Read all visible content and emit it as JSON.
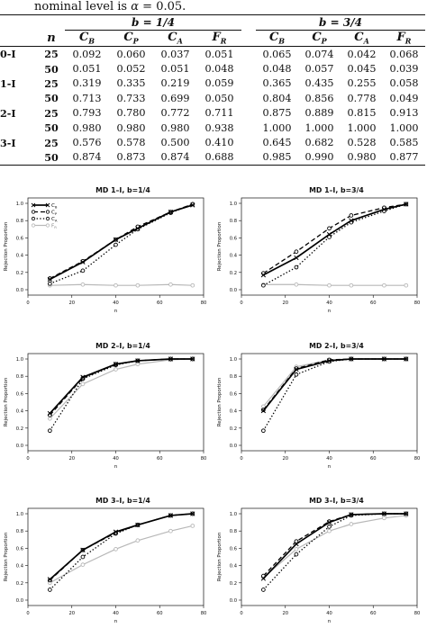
{
  "caption": {
    "prefix": "nominal level is ",
    "alpha_symbol": "α",
    "rest": " = 0.05."
  },
  "table": {
    "group_headers": [
      "b = 1/4",
      "b = 3/4"
    ],
    "n_header": "n",
    "col_symbols": [
      {
        "main": "C",
        "sub": "B"
      },
      {
        "main": "C",
        "sub": "P"
      },
      {
        "main": "C",
        "sub": "A"
      },
      {
        "main": "F",
        "sub": "R"
      }
    ],
    "rows": [
      {
        "model": "0-I",
        "n": "25",
        "v1": [
          "0.092",
          "0.060",
          "0.037",
          "0.051"
        ],
        "v2": [
          "0.065",
          "0.074",
          "0.042",
          "0.068"
        ]
      },
      {
        "model": "",
        "n": "50",
        "v1": [
          "0.051",
          "0.052",
          "0.051",
          "0.048"
        ],
        "v2": [
          "0.048",
          "0.057",
          "0.045",
          "0.039"
        ]
      },
      {
        "model": "1-I",
        "n": "25",
        "v1": [
          "0.319",
          "0.335",
          "0.219",
          "0.059"
        ],
        "v2": [
          "0.365",
          "0.435",
          "0.255",
          "0.058"
        ]
      },
      {
        "model": "",
        "n": "50",
        "v1": [
          "0.713",
          "0.733",
          "0.699",
          "0.050"
        ],
        "v2": [
          "0.804",
          "0.856",
          "0.778",
          "0.049"
        ]
      },
      {
        "model": "2-I",
        "n": "25",
        "v1": [
          "0.793",
          "0.780",
          "0.772",
          "0.711"
        ],
        "v2": [
          "0.875",
          "0.889",
          "0.815",
          "0.913"
        ]
      },
      {
        "model": "",
        "n": "50",
        "v1": [
          "0.980",
          "0.980",
          "0.980",
          "0.938"
        ],
        "v2": [
          "1.000",
          "1.000",
          "1.000",
          "1.000"
        ]
      },
      {
        "model": "3-I",
        "n": "25",
        "v1": [
          "0.576",
          "0.578",
          "0.500",
          "0.410"
        ],
        "v2": [
          "0.645",
          "0.682",
          "0.528",
          "0.585"
        ]
      },
      {
        "model": "",
        "n": "50",
        "v1": [
          "0.874",
          "0.873",
          "0.874",
          "0.688"
        ],
        "v2": [
          "0.985",
          "0.990",
          "0.980",
          "0.877"
        ]
      }
    ]
  },
  "chart_data": [
    {
      "type": "line",
      "title": "MD 1–I, b=1/4",
      "xlabel": "n",
      "ylabel": "Rejection Proportion",
      "xlim": [
        0,
        80
      ],
      "ylim": [
        0,
        1.0
      ],
      "x_ticks": [
        "0",
        "20",
        "40",
        "60",
        "80"
      ],
      "y_ticks": [
        "0.0",
        "0.2",
        "0.4",
        "0.6",
        "0.8",
        "1.0"
      ],
      "legend": [
        {
          "main": "C",
          "sub": "B"
        },
        {
          "main": "C",
          "sub": "P"
        },
        {
          "main": "C",
          "sub": "A"
        },
        {
          "main": "F",
          "sub": "R"
        }
      ],
      "x": [
        10,
        25,
        40,
        50,
        65,
        75
      ],
      "series": [
        {
          "style": "CB",
          "values": [
            0.12,
            0.32,
            0.58,
            0.71,
            0.9,
            0.98
          ]
        },
        {
          "style": "CP",
          "values": [
            0.13,
            0.33,
            0.58,
            0.73,
            0.9,
            0.99
          ]
        },
        {
          "style": "CA",
          "values": [
            0.07,
            0.22,
            0.52,
            0.7,
            0.89,
            0.99
          ]
        },
        {
          "style": "FR",
          "values": [
            0.05,
            0.06,
            0.05,
            0.05,
            0.06,
            0.05
          ]
        }
      ]
    },
    {
      "type": "line",
      "title": "MD 1–I, b=3/4",
      "xlabel": "n",
      "ylabel": "Rejection Proportion",
      "xlim": [
        0,
        80
      ],
      "ylim": [
        0,
        1.0
      ],
      "x_ticks": [
        "0",
        "20",
        "40",
        "60",
        "80"
      ],
      "y_ticks": [
        "0.0",
        "0.2",
        "0.4",
        "0.6",
        "0.8",
        "1.0"
      ],
      "x": [
        10,
        25,
        40,
        50,
        65,
        75
      ],
      "series": [
        {
          "style": "CB",
          "values": [
            0.17,
            0.37,
            0.64,
            0.8,
            0.93,
            0.99
          ]
        },
        {
          "style": "CP",
          "values": [
            0.19,
            0.44,
            0.71,
            0.86,
            0.95,
            0.99
          ]
        },
        {
          "style": "CA",
          "values": [
            0.05,
            0.26,
            0.61,
            0.78,
            0.91,
            0.99
          ]
        },
        {
          "style": "FR",
          "values": [
            0.06,
            0.06,
            0.05,
            0.05,
            0.05,
            0.05
          ]
        }
      ]
    },
    {
      "type": "line",
      "title": "MD 2–I, b=1/4",
      "xlabel": "n",
      "ylabel": "Rejection Proportion",
      "xlim": [
        0,
        80
      ],
      "ylim": [
        0,
        1.0
      ],
      "x_ticks": [
        "0",
        "20",
        "40",
        "60",
        "80"
      ],
      "y_ticks": [
        "0.0",
        "0.2",
        "0.4",
        "0.6",
        "0.8",
        "1.0"
      ],
      "x": [
        10,
        25,
        40,
        50,
        65,
        75
      ],
      "series": [
        {
          "style": "CB",
          "values": [
            0.37,
            0.79,
            0.94,
            0.98,
            1.0,
            1.0
          ]
        },
        {
          "style": "CP",
          "values": [
            0.35,
            0.78,
            0.94,
            0.98,
            1.0,
            1.0
          ]
        },
        {
          "style": "CA",
          "values": [
            0.17,
            0.77,
            0.93,
            0.98,
            1.0,
            1.0
          ]
        },
        {
          "style": "FR",
          "values": [
            0.31,
            0.71,
            0.88,
            0.94,
            0.99,
            1.0
          ]
        }
      ]
    },
    {
      "type": "line",
      "title": "MD 2–I, b=3/4",
      "xlabel": "n",
      "ylabel": "Rejection Proportion",
      "xlim": [
        0,
        80
      ],
      "ylim": [
        0,
        1.0
      ],
      "x_ticks": [
        "0",
        "20",
        "40",
        "60",
        "80"
      ],
      "y_ticks": [
        "0.0",
        "0.2",
        "0.4",
        "0.6",
        "0.8",
        "1.0"
      ],
      "x": [
        10,
        25,
        40,
        50,
        65,
        75
      ],
      "series": [
        {
          "style": "CB",
          "values": [
            0.4,
            0.88,
            0.98,
            1.0,
            1.0,
            1.0
          ]
        },
        {
          "style": "CP",
          "values": [
            0.41,
            0.89,
            0.99,
            1.0,
            1.0,
            1.0
          ]
        },
        {
          "style": "CA",
          "values": [
            0.17,
            0.82,
            0.97,
            1.0,
            1.0,
            1.0
          ]
        },
        {
          "style": "FR",
          "values": [
            0.45,
            0.91,
            0.99,
            1.0,
            1.0,
            1.0
          ]
        }
      ]
    },
    {
      "type": "line",
      "title": "MD 3–I, b=1/4",
      "xlabel": "n",
      "ylabel": "Rejection Proportion",
      "xlim": [
        0,
        80
      ],
      "ylim": [
        0,
        1.0
      ],
      "x_ticks": [
        "0",
        "20",
        "40",
        "60",
        "80"
      ],
      "y_ticks": [
        "0.0",
        "0.2",
        "0.4",
        "0.6",
        "0.8",
        "1.0"
      ],
      "x": [
        10,
        25,
        40,
        50,
        65,
        75
      ],
      "series": [
        {
          "style": "CB",
          "values": [
            0.24,
            0.58,
            0.79,
            0.87,
            0.98,
            1.0
          ]
        },
        {
          "style": "CP",
          "values": [
            0.23,
            0.58,
            0.78,
            0.87,
            0.98,
            1.0
          ]
        },
        {
          "style": "CA",
          "values": [
            0.12,
            0.5,
            0.77,
            0.87,
            0.98,
            1.0
          ]
        },
        {
          "style": "FR",
          "values": [
            0.2,
            0.41,
            0.59,
            0.69,
            0.8,
            0.86
          ]
        }
      ]
    },
    {
      "type": "line",
      "title": "MD 3–I, b=3/4",
      "xlabel": "n",
      "ylabel": "Rejection Proportion",
      "xlim": [
        0,
        80
      ],
      "ylim": [
        0,
        1.0
      ],
      "x_ticks": [
        "0",
        "20",
        "40",
        "60",
        "80"
      ],
      "y_ticks": [
        "0.0",
        "0.2",
        "0.4",
        "0.6",
        "0.8",
        "1.0"
      ],
      "x": [
        10,
        25,
        40,
        50,
        65,
        75
      ],
      "series": [
        {
          "style": "CB",
          "values": [
            0.25,
            0.65,
            0.9,
            0.99,
            1.0,
            1.0
          ]
        },
        {
          "style": "CP",
          "values": [
            0.28,
            0.68,
            0.91,
            0.99,
            1.0,
            1.0
          ]
        },
        {
          "style": "CA",
          "values": [
            0.12,
            0.53,
            0.85,
            0.98,
            1.0,
            1.0
          ]
        },
        {
          "style": "FR",
          "values": [
            0.26,
            0.59,
            0.8,
            0.88,
            0.95,
            0.98
          ]
        }
      ]
    }
  ]
}
